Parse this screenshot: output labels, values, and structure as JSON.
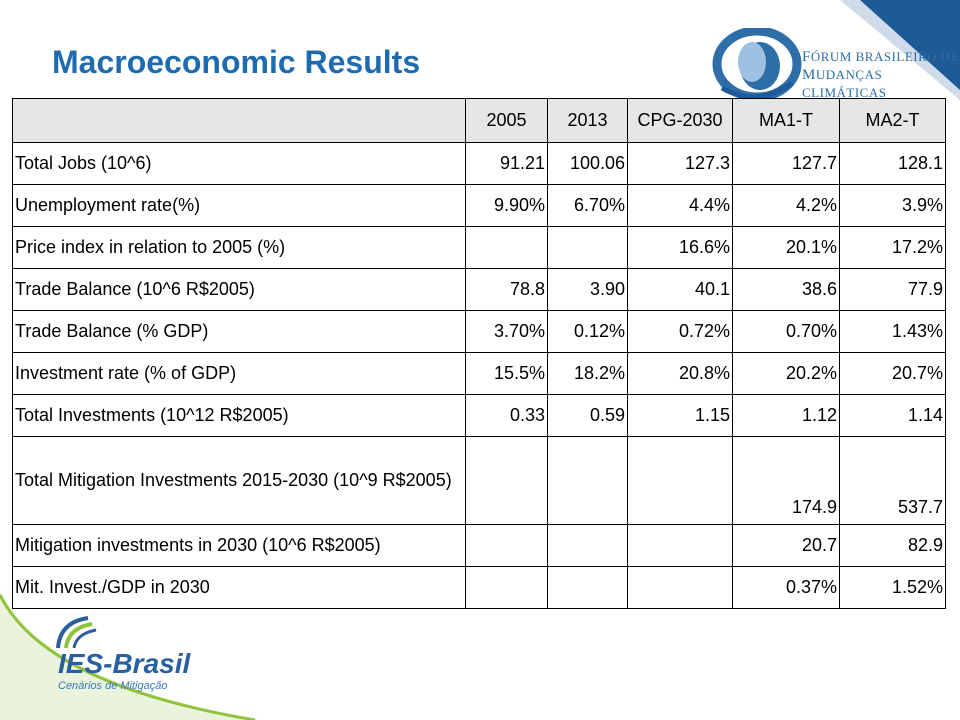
{
  "title": "Macroeconomic Results",
  "org_logo": {
    "line1_prefix": "F",
    "line1_rest": "ÓRUM BRASILEIRO DE",
    "line2_prefix": "M",
    "line2_rest": "UDANÇAS CLIMÁTICAS"
  },
  "brand_logo": {
    "name": "IES-Brasil",
    "subtitle": "Cenários de Mitigação"
  },
  "colors": {
    "title": "#1f6bb0",
    "corner": "#1e5a96",
    "header_bg": "#e6e6e6",
    "accent_green": "#8fc43a"
  },
  "table": {
    "columns": [
      "",
      "2005",
      "2013",
      "CPG-2030",
      "MA1-T",
      "MA2-T"
    ],
    "rows": [
      {
        "label": "Total Jobs (10^6)",
        "values": [
          "91.21",
          "100.06",
          "127.3",
          "127.7",
          "128.1"
        ]
      },
      {
        "label": "Unemployment rate(%)",
        "values": [
          "9.90%",
          "6.70%",
          "4.4%",
          "4.2%",
          "3.9%"
        ]
      },
      {
        "label": "Price index in relation to 2005 (%)",
        "values": [
          "",
          "",
          "16.6%",
          "20.1%",
          "17.2%"
        ]
      },
      {
        "label": "Trade Balance (10^6 R$2005)",
        "values": [
          "78.8",
          "3.90",
          "40.1",
          "38.6",
          "77.9"
        ]
      },
      {
        "label": "Trade Balance (% GDP)",
        "values": [
          "3.70%",
          "0.12%",
          "0.72%",
          "0.70%",
          "1.43%"
        ]
      },
      {
        "label": "Investment rate (% of GDP)",
        "values": [
          "15.5%",
          "18.2%",
          "20.8%",
          "20.2%",
          "20.7%"
        ]
      },
      {
        "label": "Total Investments (10^12 R$2005)",
        "values": [
          "0.33",
          "0.59",
          "1.15",
          "1.12",
          "1.14"
        ]
      },
      {
        "label": "Total Mitigation Investments 2015-2030 (10^9 R$2005)",
        "values": [
          "",
          "",
          "",
          "174.9",
          "537.7"
        ]
      },
      {
        "label": "Mitigation investments in 2030 (10^6 R$2005)",
        "values": [
          "",
          "",
          "",
          "20.7",
          "82.9"
        ]
      },
      {
        "label": "Mit. Invest./GDP in 2030",
        "values": [
          "",
          "",
          "",
          "0.37%",
          "1.52%"
        ]
      }
    ]
  }
}
